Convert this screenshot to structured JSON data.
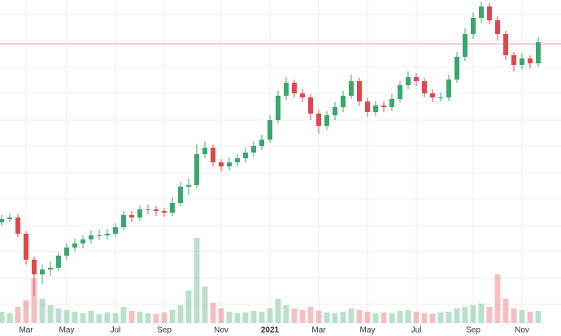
{
  "chart_data": {
    "type": "candlestick",
    "categories": [
      null,
      null,
      null,
      "Mar",
      null,
      null,
      null,
      null,
      "May",
      null,
      null,
      null,
      null,
      null,
      "Jul",
      null,
      null,
      null,
      null,
      null,
      "Sep",
      null,
      null,
      null,
      null,
      null,
      null,
      "Nov",
      null,
      null,
      null,
      null,
      null,
      "2021",
      null,
      null,
      null,
      null,
      null,
      "Mar",
      null,
      null,
      null,
      null,
      null,
      "May",
      null,
      null,
      null,
      null,
      null,
      "Jul",
      null,
      null,
      null,
      null,
      null,
      null,
      "Sep",
      null,
      null,
      null,
      null,
      null,
      "Nov",
      null,
      null
    ],
    "open": [
      136,
      140,
      142,
      122,
      90,
      72,
      78,
      80,
      95,
      105,
      110,
      115,
      120,
      120,
      122,
      130,
      145,
      142,
      152,
      152,
      150,
      148,
      160,
      180,
      182,
      220,
      228,
      210,
      205,
      210,
      215,
      222,
      230,
      238,
      262,
      292,
      308,
      295,
      290,
      270,
      255,
      268,
      278,
      292,
      310,
      285,
      272,
      280,
      278,
      288,
      305,
      315,
      310,
      295,
      290,
      290,
      312,
      340,
      368,
      388,
      402,
      385,
      368,
      342,
      330,
      338,
      332
    ],
    "high": [
      145,
      147,
      146,
      125,
      94,
      84,
      88,
      99,
      110,
      116,
      120,
      126,
      127,
      128,
      135,
      150,
      150,
      157,
      158,
      156,
      154,
      166,
      186,
      190,
      232,
      236,
      232,
      214,
      216,
      220,
      228,
      236,
      244,
      268,
      298,
      315,
      312,
      300,
      294,
      275,
      273,
      284,
      298,
      318,
      314,
      290,
      286,
      285,
      294,
      310,
      322,
      320,
      314,
      300,
      296,
      318,
      346,
      375,
      395,
      408,
      406,
      390,
      372,
      346,
      344,
      342,
      364
    ],
    "low": [
      132,
      136,
      118,
      84,
      45,
      60,
      70,
      76,
      90,
      100,
      104,
      110,
      114,
      115,
      118,
      126,
      136,
      138,
      146,
      144,
      143,
      144,
      156,
      170,
      178,
      215,
      205,
      199,
      200,
      205,
      210,
      217,
      225,
      234,
      258,
      287,
      290,
      284,
      262,
      245,
      250,
      262,
      272,
      288,
      280,
      266,
      267,
      272,
      273,
      284,
      300,
      304,
      290,
      284,
      285,
      286,
      308,
      335,
      362,
      382,
      380,
      360,
      336,
      322,
      325,
      326,
      328
    ],
    "close": [
      140,
      142,
      122,
      90,
      72,
      78,
      80,
      95,
      105,
      110,
      115,
      120,
      120,
      122,
      130,
      145,
      142,
      152,
      152,
      150,
      148,
      160,
      180,
      182,
      220,
      228,
      210,
      205,
      210,
      215,
      222,
      230,
      238,
      262,
      292,
      308,
      295,
      290,
      270,
      255,
      268,
      278,
      292,
      310,
      285,
      272,
      280,
      278,
      288,
      305,
      315,
      310,
      295,
      290,
      290,
      312,
      340,
      368,
      388,
      402,
      385,
      368,
      342,
      330,
      338,
      332,
      358
    ],
    "volume": [
      14,
      12,
      20,
      28,
      55,
      30,
      22,
      18,
      16,
      14,
      12,
      15,
      11,
      13,
      12,
      20,
      15,
      14,
      12,
      11,
      13,
      16,
      22,
      40,
      105,
      45,
      25,
      18,
      14,
      12,
      13,
      15,
      14,
      18,
      30,
      22,
      18,
      16,
      20,
      15,
      13,
      12,
      14,
      18,
      16,
      14,
      12,
      13,
      12,
      15,
      16,
      14,
      12,
      11,
      13,
      14,
      18,
      20,
      22,
      24,
      20,
      60,
      30,
      18,
      16,
      14,
      15
    ],
    "up_color": "#3aa76d",
    "down_color": "#e0474c",
    "ylim": [
      0,
      410
    ],
    "yticks": [
      35,
      67,
      100,
      132,
      165,
      197,
      230,
      262,
      295,
      327,
      360,
      392
    ],
    "vlim": [
      0,
      110
    ],
    "price_line": 356,
    "grid": true
  }
}
